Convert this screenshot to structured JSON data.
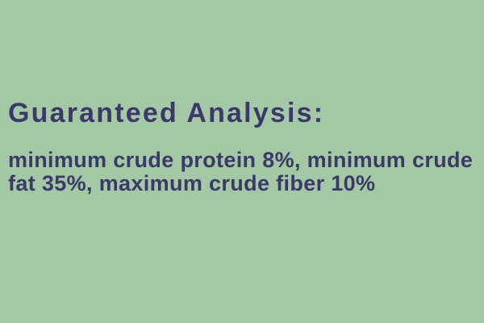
{
  "colors": {
    "background": "#a3c8a4",
    "text": "#3c396a"
  },
  "label": {
    "heading": "Guaranteed Analysis:",
    "body_lines": [
      "minimum crude protein 8%, minimum crude",
      "fat 35%, maximum crude fiber 10%"
    ],
    "nutrients": [
      {
        "name": "crude protein",
        "bound": "minimum",
        "value": "8%"
      },
      {
        "name": "crude fat",
        "bound": "minimum",
        "value": "35%"
      },
      {
        "name": "crude fiber",
        "bound": "maximum",
        "value": "10%"
      }
    ]
  }
}
